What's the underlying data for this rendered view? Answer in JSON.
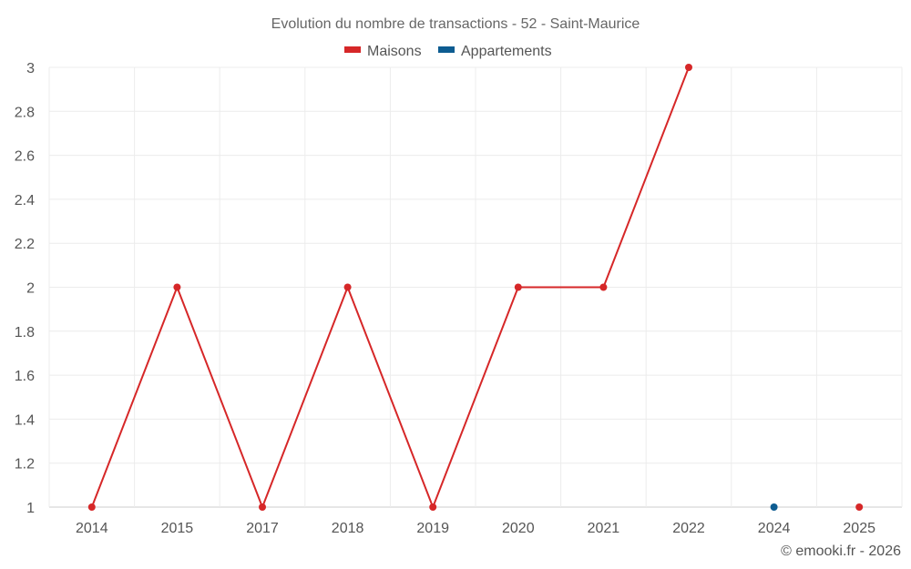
{
  "chart_data": {
    "type": "line",
    "title": "Evolution du nombre de transactions - 52 - Saint-Maurice",
    "categories": [
      "2014",
      "2015",
      "2017",
      "2018",
      "2019",
      "2020",
      "2021",
      "2022",
      "2024",
      "2025"
    ],
    "series": [
      {
        "name": "Maisons",
        "color": "#d62728",
        "values": [
          1,
          2,
          1,
          2,
          1,
          2,
          2,
          3,
          null,
          1
        ],
        "connect_until_index": 7
      },
      {
        "name": "Appartements",
        "color": "#0d5c91",
        "values": [
          null,
          null,
          null,
          null,
          null,
          null,
          null,
          null,
          1,
          null
        ]
      }
    ],
    "ylim": [
      1,
      3
    ],
    "yticks": [
      "1",
      "1.2",
      "1.4",
      "1.6",
      "1.8",
      "2",
      "2.2",
      "2.4",
      "2.6",
      "2.8",
      "3"
    ],
    "xlabel": "",
    "ylabel": "",
    "legend_position": "top-center",
    "grid": true
  },
  "credit": "© emooki.fr - 2026"
}
